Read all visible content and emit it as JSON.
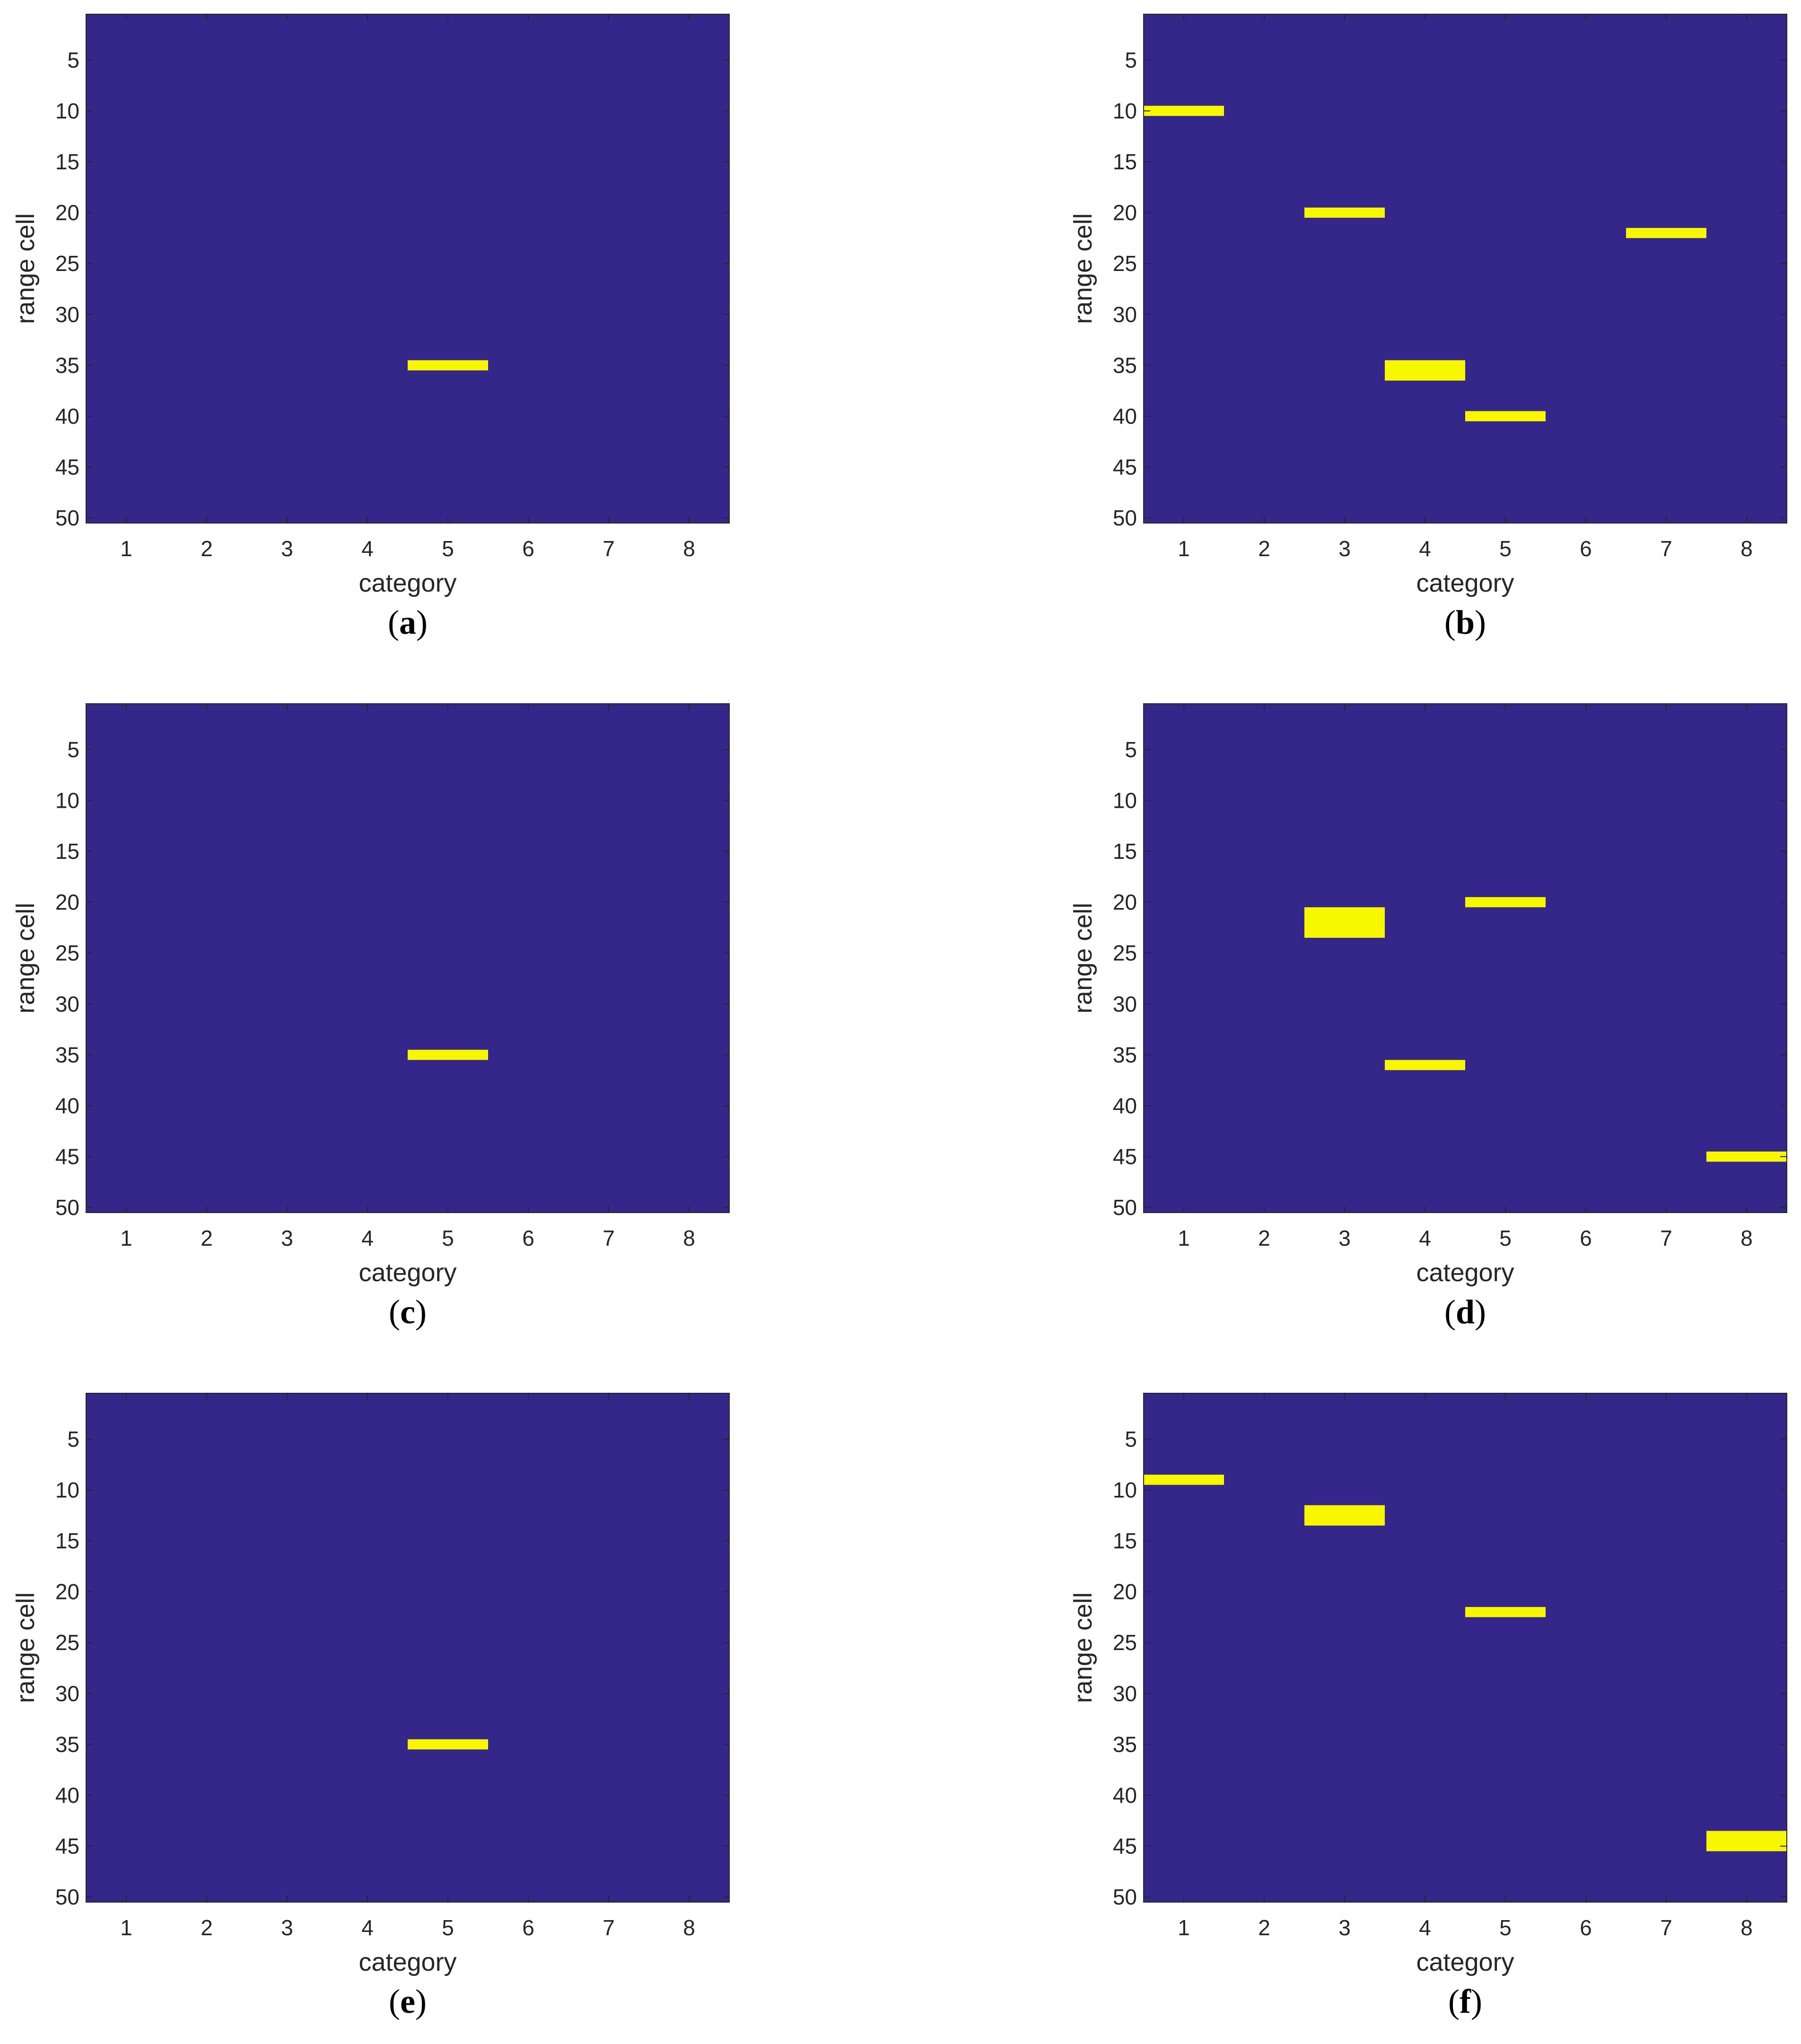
{
  "colors": {
    "background": "#35268a",
    "active": "#f7f700",
    "axis": "#262626"
  },
  "chart_data": [
    {
      "type": "heatmap",
      "label": "a",
      "xlabel": "category",
      "ylabel": "range cell",
      "xticks": [
        1,
        2,
        3,
        4,
        5,
        6,
        7,
        8
      ],
      "yticks": [
        5,
        10,
        15,
        20,
        25,
        30,
        35,
        40,
        45,
        50
      ],
      "xlim": [
        0.5,
        8.5
      ],
      "ylim": [
        50,
        1
      ],
      "y_direction": "reversed",
      "active_cells": [
        {
          "category": 5,
          "range_cells": [
            35
          ]
        }
      ]
    },
    {
      "type": "heatmap",
      "label": "b",
      "xlabel": "category",
      "ylabel": "range cell",
      "xticks": [
        1,
        2,
        3,
        4,
        5,
        6,
        7,
        8
      ],
      "yticks": [
        5,
        10,
        15,
        20,
        25,
        30,
        35,
        40,
        45,
        50
      ],
      "xlim": [
        0.5,
        8.5
      ],
      "ylim": [
        50,
        1
      ],
      "y_direction": "reversed",
      "active_cells": [
        {
          "category": 1,
          "range_cells": [
            10
          ]
        },
        {
          "category": 3,
          "range_cells": [
            20
          ]
        },
        {
          "category": 4,
          "range_cells": [
            35,
            36
          ]
        },
        {
          "category": 5,
          "range_cells": [
            40
          ]
        },
        {
          "category": 7,
          "range_cells": [
            22
          ]
        }
      ]
    },
    {
      "type": "heatmap",
      "label": "c",
      "xlabel": "category",
      "ylabel": "range cell",
      "xticks": [
        1,
        2,
        3,
        4,
        5,
        6,
        7,
        8
      ],
      "yticks": [
        5,
        10,
        15,
        20,
        25,
        30,
        35,
        40,
        45,
        50
      ],
      "xlim": [
        0.5,
        8.5
      ],
      "ylim": [
        50,
        1
      ],
      "y_direction": "reversed",
      "active_cells": [
        {
          "category": 5,
          "range_cells": [
            35
          ]
        }
      ]
    },
    {
      "type": "heatmap",
      "label": "d",
      "xlabel": "category",
      "ylabel": "range cell",
      "xticks": [
        1,
        2,
        3,
        4,
        5,
        6,
        7,
        8
      ],
      "yticks": [
        5,
        10,
        15,
        20,
        25,
        30,
        35,
        40,
        45,
        50
      ],
      "xlim": [
        0.5,
        8.5
      ],
      "ylim": [
        50,
        1
      ],
      "y_direction": "reversed",
      "active_cells": [
        {
          "category": 3,
          "range_cells": [
            21,
            22,
            23
          ]
        },
        {
          "category": 4,
          "range_cells": [
            36
          ]
        },
        {
          "category": 5,
          "range_cells": [
            20
          ]
        },
        {
          "category": 8,
          "range_cells": [
            45
          ]
        }
      ]
    },
    {
      "type": "heatmap",
      "label": "e",
      "xlabel": "category",
      "ylabel": "range cell",
      "xticks": [
        1,
        2,
        3,
        4,
        5,
        6,
        7,
        8
      ],
      "yticks": [
        5,
        10,
        15,
        20,
        25,
        30,
        35,
        40,
        45,
        50
      ],
      "xlim": [
        0.5,
        8.5
      ],
      "ylim": [
        50,
        1
      ],
      "y_direction": "reversed",
      "active_cells": [
        {
          "category": 5,
          "range_cells": [
            35
          ]
        }
      ]
    },
    {
      "type": "heatmap",
      "label": "f",
      "xlabel": "category",
      "ylabel": "range cell",
      "xticks": [
        1,
        2,
        3,
        4,
        5,
        6,
        7,
        8
      ],
      "yticks": [
        5,
        10,
        15,
        20,
        25,
        30,
        35,
        40,
        45,
        50
      ],
      "xlim": [
        0.5,
        8.5
      ],
      "ylim": [
        50,
        1
      ],
      "y_direction": "reversed",
      "active_cells": [
        {
          "category": 1,
          "range_cells": [
            9
          ]
        },
        {
          "category": 3,
          "range_cells": [
            12,
            13
          ]
        },
        {
          "category": 5,
          "range_cells": [
            22
          ]
        },
        {
          "category": 8,
          "range_cells": [
            44,
            45
          ]
        }
      ]
    }
  ]
}
